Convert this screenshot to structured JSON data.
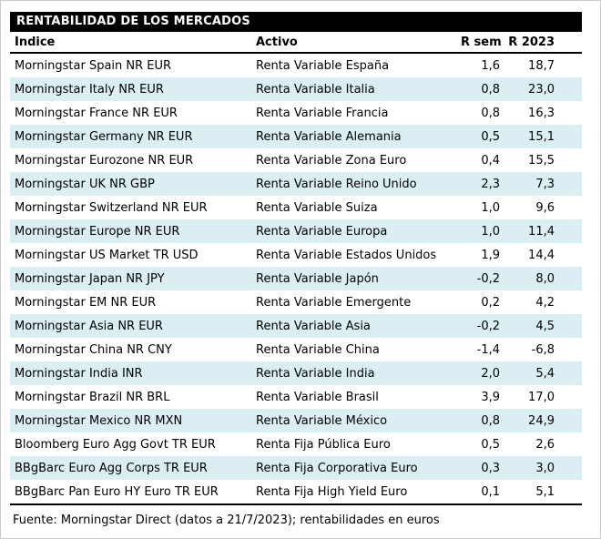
{
  "title": "RENTABILIDAD DE LOS MERCADOS",
  "footer": "Fuente: Morningstar Direct (datos a 21/7/2023); rentabilidades en euros",
  "colors": {
    "title_bar_bg": "#000000",
    "title_bar_text": "#ffffff",
    "row_alt_bg": "#daeef3",
    "rule_color": "#000000",
    "text": "#000000"
  },
  "chart_data": {
    "type": "table",
    "title": "RENTABILIDAD DE LOS MERCADOS",
    "columns": [
      "Índice",
      "Activo",
      "R sem",
      "R 2023"
    ],
    "rows": [
      [
        "Morningstar Spain NR EUR",
        "Renta Variable España",
        "1,6",
        "18,7"
      ],
      [
        "Morningstar Italy NR EUR",
        "Renta Variable Italia",
        "0,8",
        "23,0"
      ],
      [
        "Morningstar France NR EUR",
        "Renta Variable Francia",
        "0,8",
        "16,3"
      ],
      [
        "Morningstar Germany NR EUR",
        "Renta Variable Alemania",
        "0,5",
        "15,1"
      ],
      [
        "Morningstar Eurozone NR EUR",
        "Renta Variable Zona Euro",
        "0,4",
        "15,5"
      ],
      [
        "Morningstar UK NR GBP",
        "Renta Variable Reino Unido",
        "2,3",
        "7,3"
      ],
      [
        "Morningstar Switzerland NR EUR",
        "Renta Variable Suiza",
        "1,0",
        "9,6"
      ],
      [
        "Morningstar Europe NR EUR",
        "Renta Variable Europa",
        "1,0",
        "11,4"
      ],
      [
        "Morningstar US Market TR USD",
        "Renta Variable Estados Unidos",
        "1,9",
        "14,4"
      ],
      [
        "Morningstar Japan NR JPY",
        "Renta Variable Japón",
        "-0,2",
        "8,0"
      ],
      [
        "Morningstar EM NR EUR",
        "Renta Variable Emergente",
        "0,2",
        "4,2"
      ],
      [
        "Morningstar Asia NR EUR",
        "Renta Variable Asia",
        "-0,2",
        "4,5"
      ],
      [
        "Morningstar China NR CNY",
        "Renta Variable China",
        "-1,4",
        "-6,8"
      ],
      [
        "Morningstar India INR",
        "Renta Variable India",
        "2,0",
        "5,4"
      ],
      [
        "Morningstar Brazil NR BRL",
        "Renta Variable Brasil",
        "3,9",
        "17,0"
      ],
      [
        "Morningstar Mexico NR MXN",
        "Renta Variable México",
        "0,8",
        "24,9"
      ],
      [
        "Bloomberg Euro Agg Govt TR EUR",
        "Renta Fija Pública Euro",
        "0,5",
        "2,6"
      ],
      [
        "BBgBarc Euro Agg Corps TR EUR",
        "Renta Fija Corporativa Euro",
        "0,3",
        "3,0"
      ],
      [
        "BBgBarc Pan Euro HY Euro TR EUR",
        "Renta Fija High Yield Euro",
        "0,1",
        "5,1"
      ]
    ]
  }
}
